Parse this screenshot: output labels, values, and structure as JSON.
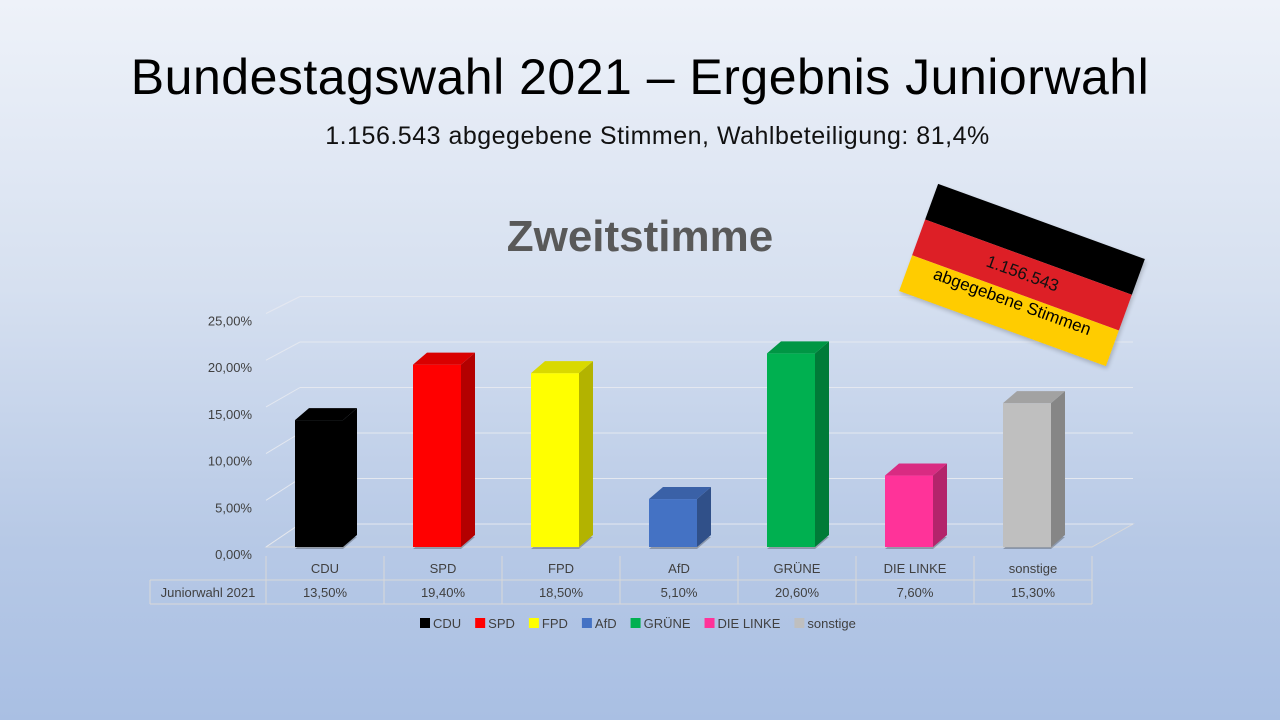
{
  "title": "Bundestagswahl 2021 – Ergebnis Juniorwahl",
  "subtitle": "1.156.543 abgegebene Stimmen, Wahlbeteiligung: 81,4%",
  "flag": {
    "line1": "1.156.543",
    "line2": "abgegebene Stimmen",
    "colors": [
      "#000000",
      "#dd1f26",
      "#ffcc00"
    ]
  },
  "chart_data": {
    "type": "bar",
    "title": "Zweitstimme",
    "categories": [
      "CDU",
      "SPD",
      "FPD",
      "AfD",
      "GRÜNE",
      "DIE LINKE",
      "sonstige"
    ],
    "series": [
      {
        "name": "Juniorwahl 2021",
        "values": [
          13.5,
          19.4,
          18.5,
          5.1,
          20.6,
          7.6,
          15.3
        ]
      }
    ],
    "value_labels": [
      "13,50%",
      "19,40%",
      "18,50%",
      "5,10%",
      "20,60%",
      "7,60%",
      "15,30%"
    ],
    "colors": [
      "#000000",
      "#ff0000",
      "#ffff00",
      "#4472c4",
      "#00b050",
      "#ff3399",
      "#bfbfbf"
    ],
    "yticks": [
      "0,00%",
      "5,00%",
      "10,00%",
      "15,00%",
      "20,00%",
      "25,00%"
    ],
    "ylim": [
      0,
      25
    ],
    "grid": true,
    "data_table": true,
    "legend": "bottom",
    "style": "3d-column"
  }
}
